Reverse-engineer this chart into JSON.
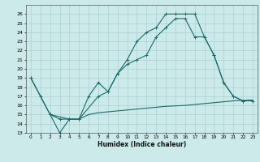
{
  "xlabel": "Humidex (Indice chaleur)",
  "bg_color": "#cceaea",
  "grid_color": "#aacfcf",
  "line_color": "#1a6b6b",
  "line1_x": [
    0,
    1,
    2,
    3,
    4,
    5,
    6,
    7,
    8,
    9,
    10,
    11,
    12,
    13,
    14,
    15,
    16,
    17,
    18,
    19,
    20,
    21,
    22
  ],
  "line1_y": [
    19,
    17,
    15,
    13,
    14.5,
    14.5,
    17,
    18.5,
    17.5,
    19.5,
    21,
    23,
    24,
    24.5,
    26,
    26,
    26,
    26,
    23.5,
    21.5,
    18.5,
    17,
    16.5
  ],
  "line2_x": [
    0,
    2,
    3,
    4,
    5,
    7,
    8,
    9,
    10,
    11,
    12,
    13,
    14,
    15,
    16,
    17,
    18,
    19,
    20,
    21,
    22,
    23
  ],
  "line2_y": [
    19,
    15,
    14.5,
    14.5,
    14.5,
    17,
    17.5,
    19.5,
    20.5,
    21,
    21.5,
    23.5,
    24.5,
    25.5,
    25.5,
    23.5,
    23.5,
    21.5,
    18.5,
    17,
    16.5,
    16.5
  ],
  "line3_x": [
    2,
    4,
    5,
    6,
    7,
    8,
    9,
    10,
    11,
    12,
    13,
    14,
    15,
    16,
    17,
    18,
    19,
    20,
    21,
    22,
    23
  ],
  "line3_y": [
    15,
    14.5,
    14.5,
    15.0,
    15.2,
    15.3,
    15.4,
    15.5,
    15.6,
    15.7,
    15.8,
    15.9,
    15.95,
    16.0,
    16.1,
    16.2,
    16.3,
    16.4,
    16.5,
    16.55,
    16.6
  ],
  "xlim": [
    -0.5,
    23.5
  ],
  "ylim": [
    13,
    27
  ],
  "yticks": [
    13,
    14,
    15,
    16,
    17,
    18,
    19,
    20,
    21,
    22,
    23,
    24,
    25,
    26
  ],
  "xticks": [
    0,
    1,
    2,
    3,
    4,
    5,
    6,
    7,
    8,
    9,
    10,
    11,
    12,
    13,
    14,
    15,
    16,
    17,
    18,
    19,
    20,
    21,
    22,
    23
  ]
}
